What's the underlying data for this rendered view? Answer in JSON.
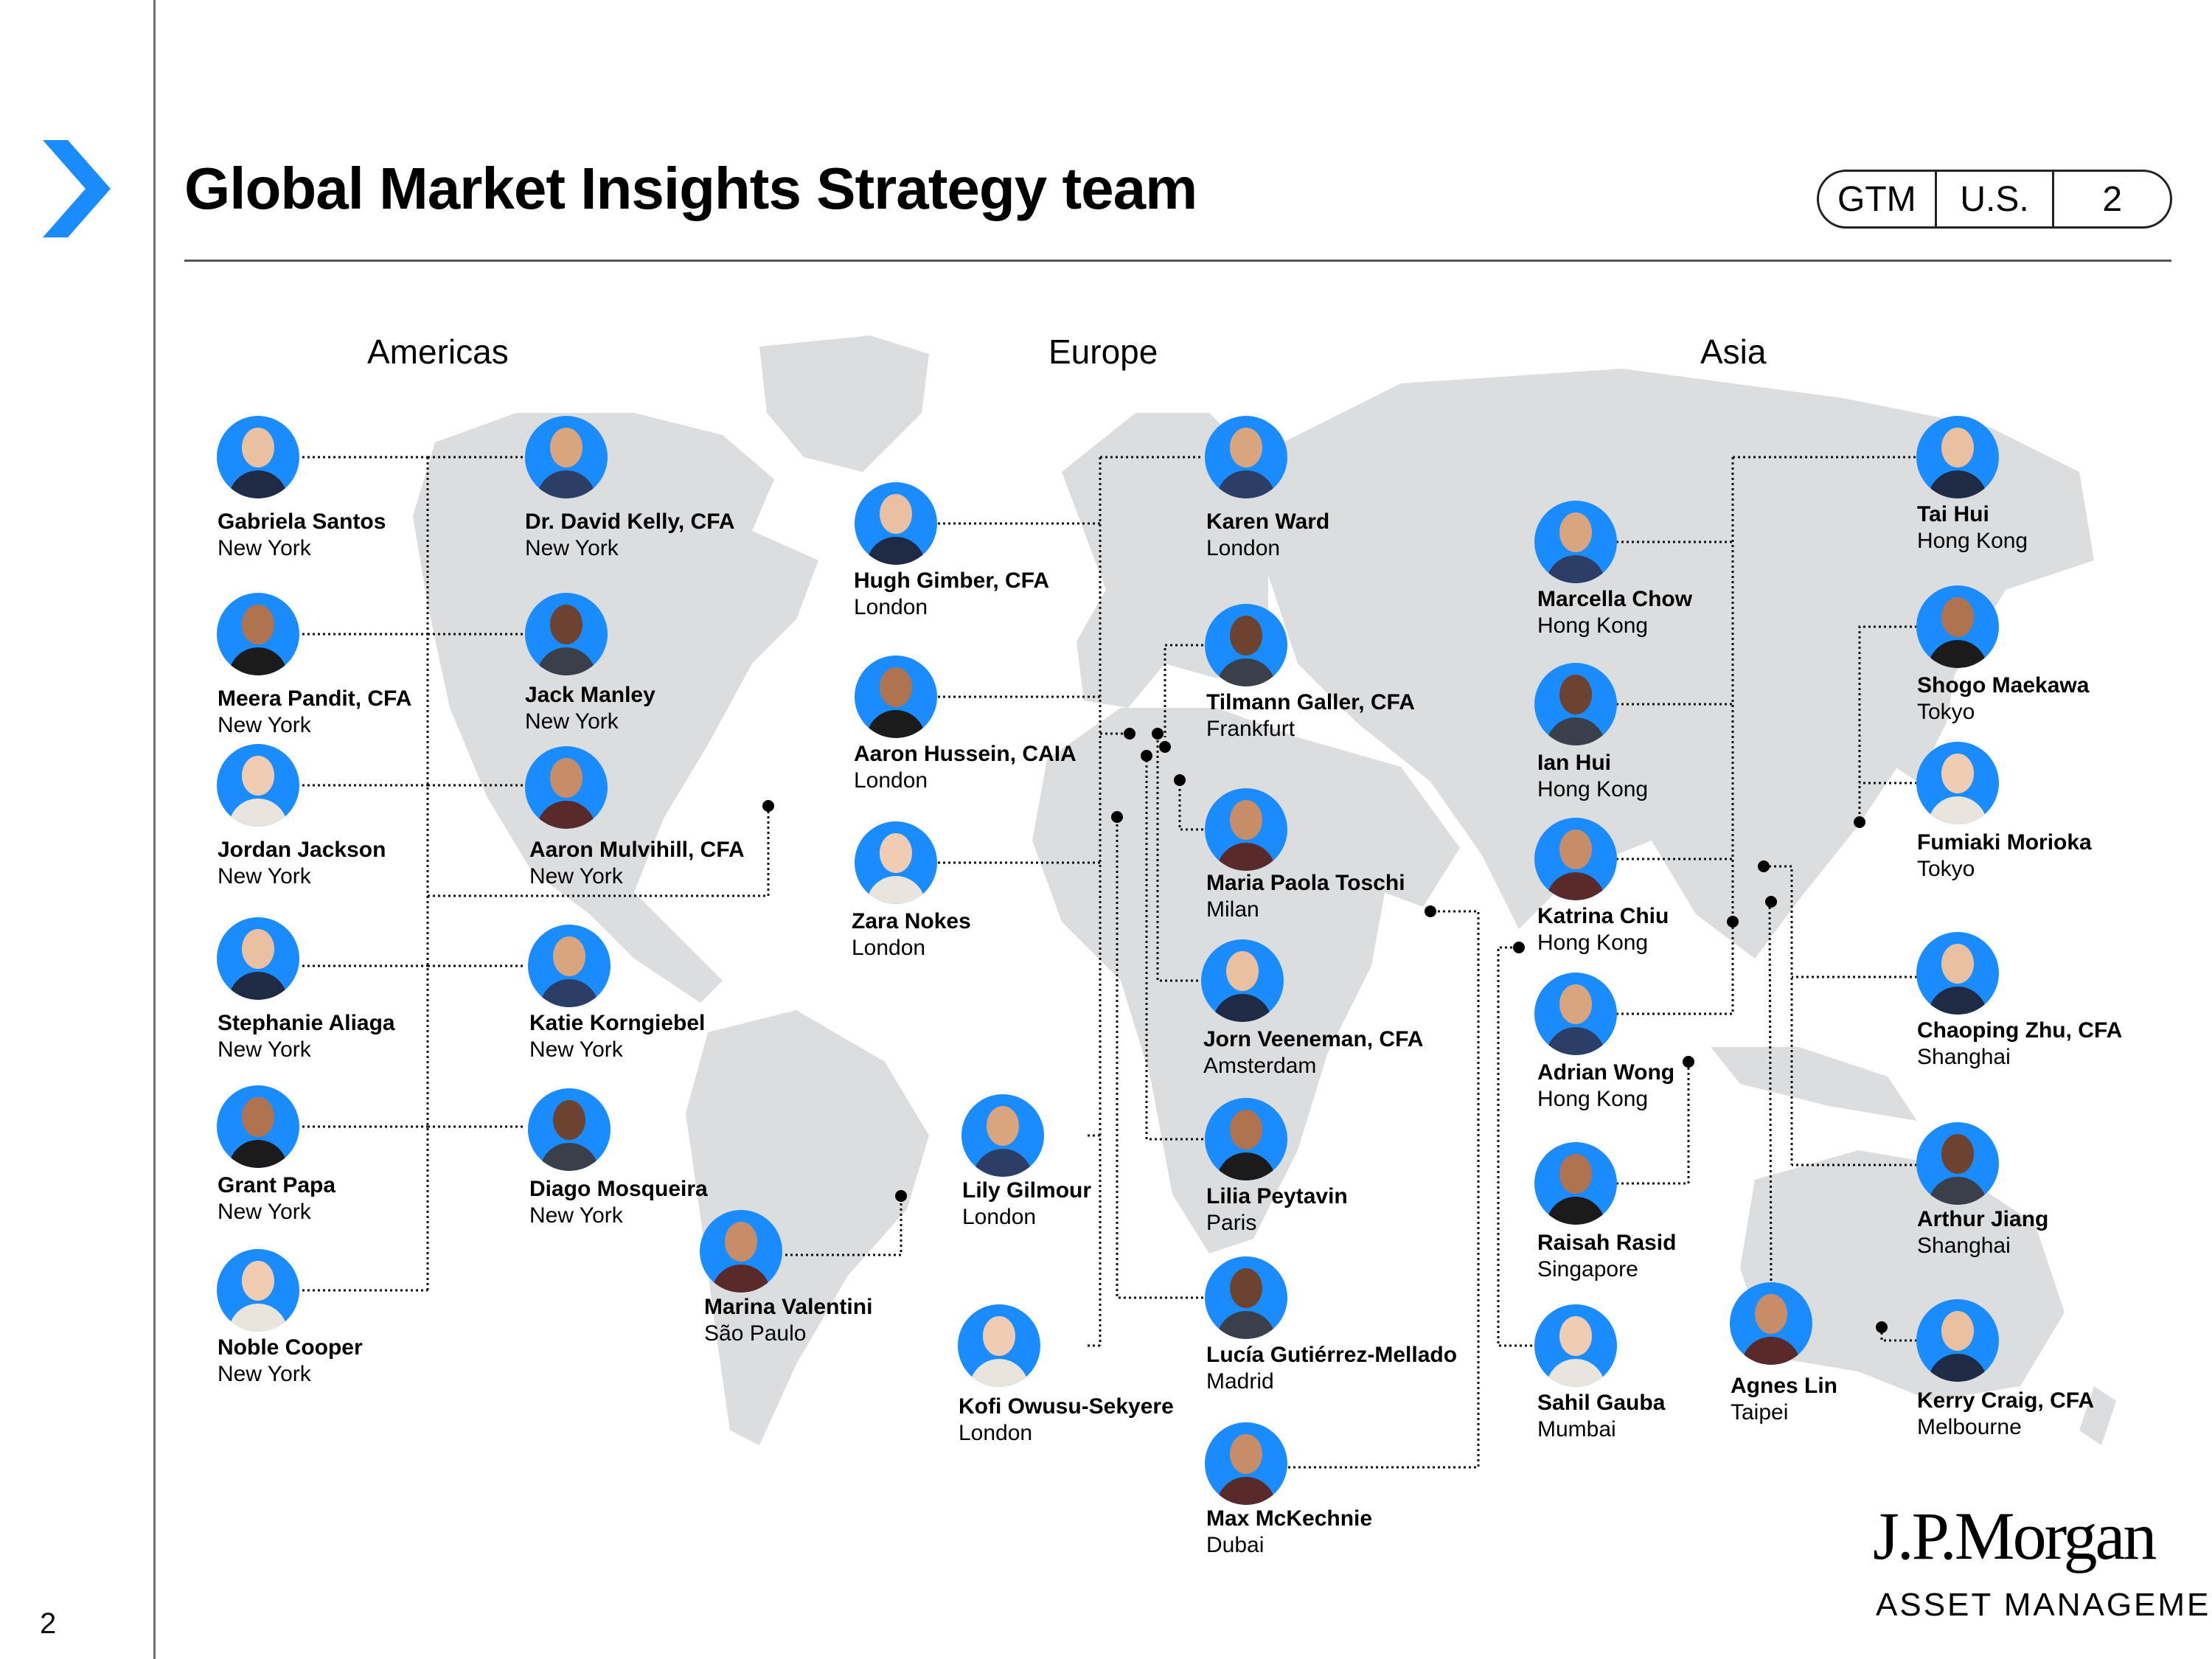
{
  "page": {
    "title": "Global Market Insights Strategy team",
    "page_number": "2"
  },
  "tag": {
    "left": "GTM",
    "middle": "U.S.",
    "right": "2"
  },
  "regions": {
    "americas": "Americas",
    "europe": "Europe",
    "asia": "Asia"
  },
  "logo": {
    "line1": "J.P.Morgan",
    "line2": "ASSET MANAGEMENT"
  },
  "colors": {
    "accent": "#1a8cff",
    "map": "#dcdddf",
    "text": "#000000"
  },
  "people": [
    {
      "name": "Gabriela Santos",
      "city": "New York"
    },
    {
      "name": "Dr. David Kelly, CFA",
      "city": "New York"
    },
    {
      "name": "Meera Pandit, CFA",
      "city": "New York"
    },
    {
      "name": "Jack Manley",
      "city": "New York"
    },
    {
      "name": "Jordan Jackson",
      "city": "New York"
    },
    {
      "name": "Aaron Mulvihill, CFA",
      "city": "New York"
    },
    {
      "name": "Stephanie Aliaga",
      "city": "New York"
    },
    {
      "name": "Katie Korngiebel",
      "city": "New York"
    },
    {
      "name": "Grant Papa",
      "city": "New York"
    },
    {
      "name": "Diago Mosqueira",
      "city": "New York"
    },
    {
      "name": "Noble Cooper",
      "city": "New York"
    },
    {
      "name": "Marina Valentini",
      "city": "São Paulo"
    },
    {
      "name": "Hugh Gimber, CFA",
      "city": "London"
    },
    {
      "name": "Karen Ward",
      "city": "London"
    },
    {
      "name": "Aaron Hussein, CAIA",
      "city": "London"
    },
    {
      "name": "Tilmann Galler, CFA",
      "city": "Frankfurt"
    },
    {
      "name": "Zara Nokes",
      "city": "London"
    },
    {
      "name": "Maria Paola Toschi",
      "city": "Milan"
    },
    {
      "name": "Jorn Veeneman, CFA",
      "city": "Amsterdam"
    },
    {
      "name": "Lily Gilmour",
      "city": "London"
    },
    {
      "name": "Lilia Peytavin",
      "city": "Paris"
    },
    {
      "name": "Lucía Gutiérrez-Mellado",
      "city": "Madrid"
    },
    {
      "name": "Kofi Owusu-Sekyere",
      "city": "London"
    },
    {
      "name": "Max McKechnie",
      "city": "Dubai"
    },
    {
      "name": "Tai Hui",
      "city": "Hong Kong"
    },
    {
      "name": "Marcella Chow",
      "city": "Hong Kong"
    },
    {
      "name": "Shogo Maekawa",
      "city": "Tokyo"
    },
    {
      "name": "Ian Hui",
      "city": "Hong Kong"
    },
    {
      "name": "Fumiaki Morioka",
      "city": "Tokyo"
    },
    {
      "name": "Katrina Chiu",
      "city": "Hong Kong"
    },
    {
      "name": "Chaoping Zhu, CFA",
      "city": "Shanghai"
    },
    {
      "name": "Adrian Wong",
      "city": "Hong Kong"
    },
    {
      "name": "Raisah Rasid",
      "city": "Singapore"
    },
    {
      "name": "Arthur Jiang",
      "city": "Shanghai"
    },
    {
      "name": "Sahil Gauba",
      "city": "Mumbai"
    },
    {
      "name": "Agnes Lin",
      "city": "Taipei"
    },
    {
      "name": "Kerry Craig, CFA",
      "city": "Melbourne"
    }
  ]
}
